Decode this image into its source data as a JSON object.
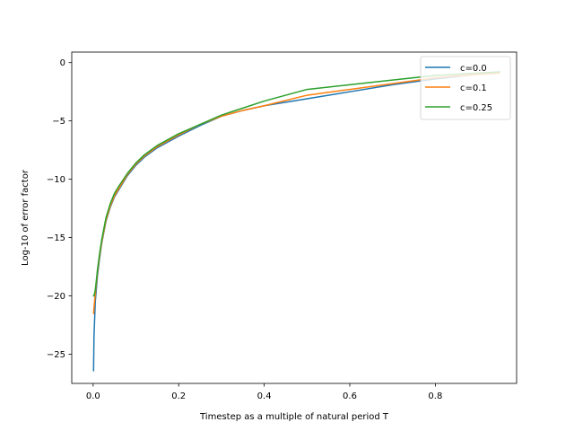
{
  "chart_data": {
    "type": "line",
    "title": "",
    "xlabel": "Timestep as a multiple of natural period T",
    "ylabel": "Log-10 of error factor",
    "xlim": [
      -0.05,
      0.99
    ],
    "ylim": [
      -27.5,
      0.9
    ],
    "xticks": [
      0.0,
      0.2,
      0.4,
      0.6,
      0.8
    ],
    "xtick_labels": [
      "0.0",
      "0.2",
      "0.4",
      "0.6",
      "0.8"
    ],
    "yticks": [
      0,
      -5,
      -10,
      -15,
      -20,
      -25
    ],
    "ytick_labels": [
      "0",
      "−5",
      "−10",
      "−15",
      "−20",
      "−25"
    ],
    "grid": false,
    "legend_position": "top-right",
    "series": [
      {
        "name": "c=0.0",
        "color": "#1f77b4",
        "x": [
          0.001,
          0.002,
          0.005,
          0.01,
          0.015,
          0.02,
          0.03,
          0.04,
          0.05,
          0.06,
          0.08,
          0.1,
          0.12,
          0.15,
          0.2,
          0.25,
          0.3,
          0.35,
          0.4,
          0.5,
          0.6,
          0.7,
          0.8,
          0.9,
          0.95
        ],
        "y": [
          -26.4,
          -23.5,
          -20.5,
          -18.3,
          -16.8,
          -15.5,
          -13.6,
          -12.4,
          -11.5,
          -10.9,
          -9.7,
          -8.8,
          -8.1,
          -7.3,
          -6.3,
          -5.4,
          -4.6,
          -4.1,
          -3.7,
          -3.1,
          -2.5,
          -1.9,
          -1.4,
          -1.0,
          -0.8
        ]
      },
      {
        "name": "c=0.1",
        "color": "#ff7f0e",
        "x": [
          0.001,
          0.002,
          0.005,
          0.01,
          0.015,
          0.02,
          0.03,
          0.04,
          0.05,
          0.06,
          0.08,
          0.1,
          0.12,
          0.15,
          0.2,
          0.25,
          0.3,
          0.35,
          0.4,
          0.5,
          0.6,
          0.7,
          0.8,
          0.9,
          0.95
        ],
        "y": [
          -21.5,
          -21.0,
          -19.8,
          -18.0,
          -16.6,
          -15.4,
          -13.5,
          -12.3,
          -11.4,
          -10.8,
          -9.6,
          -8.7,
          -8.0,
          -7.2,
          -6.2,
          -5.3,
          -4.6,
          -4.1,
          -3.7,
          -2.8,
          -2.3,
          -1.8,
          -1.3,
          -1.0,
          -0.9
        ]
      },
      {
        "name": "c=0.25",
        "color": "#2ca02c",
        "x": [
          0.001,
          0.002,
          0.005,
          0.01,
          0.015,
          0.02,
          0.03,
          0.04,
          0.05,
          0.06,
          0.08,
          0.1,
          0.12,
          0.15,
          0.2,
          0.25,
          0.3,
          0.35,
          0.4,
          0.5,
          0.6,
          0.7,
          0.8,
          0.9,
          0.95
        ],
        "y": [
          -20.0,
          -20.0,
          -19.5,
          -17.8,
          -16.4,
          -15.2,
          -13.3,
          -12.1,
          -11.2,
          -10.6,
          -9.5,
          -8.6,
          -7.9,
          -7.1,
          -6.1,
          -5.3,
          -4.5,
          -3.9,
          -3.3,
          -2.3,
          -1.9,
          -1.5,
          -1.1,
          -0.9,
          -0.8
        ]
      }
    ]
  }
}
